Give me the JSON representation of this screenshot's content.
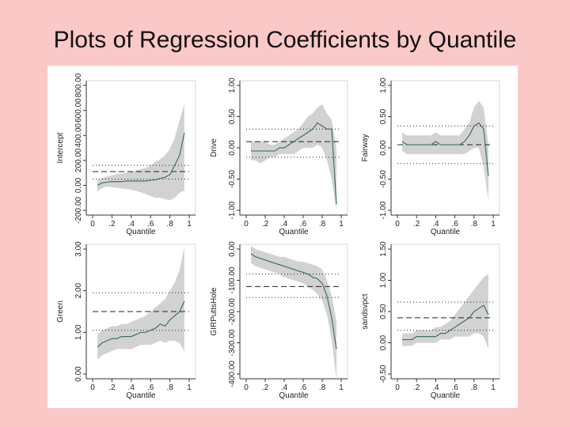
{
  "slide": {
    "title": "Plots of Regression Coefficients by Quantile"
  },
  "colors": {
    "background": "#fbc8c8",
    "band": "#d2d2d2",
    "line": "#3f7068",
    "ref": "#222222"
  },
  "chart_data": [
    {
      "type": "line",
      "ylabel": "Intercept",
      "xlabel": "Quantile",
      "ylim": [
        -200,
        800
      ],
      "yticks": [
        -200,
        0,
        200,
        400,
        600,
        800
      ],
      "ytick_labels": [
        "-200.00",
        "0.00",
        "200.00",
        "400.00",
        "600.00",
        "800.00"
      ],
      "xticks": [
        0,
        0.2,
        0.4,
        0.6,
        0.8,
        1
      ],
      "xtick_labels": [
        "0",
        ".2",
        ".4",
        ".6",
        ".8",
        "1"
      ],
      "x": [
        0.05,
        0.1,
        0.15,
        0.2,
        0.25,
        0.3,
        0.35,
        0.4,
        0.45,
        0.5,
        0.55,
        0.6,
        0.65,
        0.7,
        0.75,
        0.8,
        0.85,
        0.9,
        0.95
      ],
      "coef": [
        0,
        20,
        25,
        30,
        30,
        30,
        35,
        35,
        35,
        35,
        35,
        40,
        45,
        55,
        65,
        85,
        160,
        240,
        420
      ],
      "lower": [
        -50,
        -20,
        -10,
        -15,
        -20,
        -25,
        -30,
        -35,
        -45,
        -55,
        -70,
        -85,
        -100,
        -100,
        -110,
        -120,
        -100,
        -60,
        -40
      ],
      "upper": [
        40,
        60,
        70,
        80,
        90,
        95,
        100,
        110,
        120,
        130,
        140,
        160,
        190,
        210,
        240,
        290,
        380,
        520,
        650
      ],
      "ols": 110,
      "ci": [
        160,
        50
      ]
    },
    {
      "type": "line",
      "ylabel": "Drive",
      "xlabel": "Quantile",
      "ylim": [
        -1,
        1
      ],
      "yticks": [
        -1,
        -0.5,
        0,
        0.5,
        1
      ],
      "ytick_labels": [
        "-1.00",
        "-0.50",
        "0.00",
        "0.50",
        "1.00"
      ],
      "xticks": [
        0,
        0.2,
        0.4,
        0.6,
        0.8,
        1
      ],
      "xtick_labels": [
        "0",
        ".2",
        ".4",
        ".6",
        ".8",
        "1"
      ],
      "x": [
        0.05,
        0.1,
        0.15,
        0.2,
        0.25,
        0.3,
        0.35,
        0.4,
        0.45,
        0.5,
        0.55,
        0.6,
        0.65,
        0.7,
        0.75,
        0.8,
        0.85,
        0.9,
        0.95
      ],
      "coef": [
        -0.05,
        -0.05,
        -0.05,
        -0.05,
        -0.05,
        -0.05,
        0,
        0,
        0.05,
        0.1,
        0.15,
        0.2,
        0.25,
        0.3,
        0.4,
        0.35,
        0.3,
        0.3,
        -0.9
      ],
      "lower": [
        -0.2,
        -0.2,
        -0.25,
        -0.2,
        -0.15,
        -0.15,
        -0.1,
        -0.1,
        -0.1,
        -0.1,
        -0.05,
        0,
        0,
        0,
        0.05,
        0,
        -0.2,
        -0.5,
        -1.0
      ],
      "upper": [
        0.1,
        0.1,
        0.1,
        0.1,
        0.05,
        0.05,
        0.1,
        0.15,
        0.2,
        0.25,
        0.3,
        0.4,
        0.5,
        0.55,
        0.65,
        0.7,
        0.55,
        0.45,
        0
      ],
      "ols": 0.1,
      "ci": [
        0.3,
        -0.15
      ]
    },
    {
      "type": "line",
      "ylabel": "Fairway",
      "xlabel": "Quantile",
      "ylim": [
        -1,
        1
      ],
      "yticks": [
        -1,
        -0.5,
        0,
        0.5,
        1
      ],
      "ytick_labels": [
        "-1.00",
        "-0.50",
        "0.00",
        "0.50",
        "1.00"
      ],
      "xticks": [
        0,
        0.2,
        0.4,
        0.6,
        0.8,
        1
      ],
      "xtick_labels": [
        "0",
        ".2",
        ".4",
        ".6",
        ".8",
        "1"
      ],
      "x": [
        0.05,
        0.1,
        0.15,
        0.2,
        0.25,
        0.3,
        0.35,
        0.4,
        0.45,
        0.5,
        0.55,
        0.6,
        0.65,
        0.7,
        0.75,
        0.8,
        0.85,
        0.9,
        0.95
      ],
      "coef": [
        0.1,
        0.05,
        0.05,
        0.05,
        0.05,
        0.05,
        0.05,
        0.1,
        0.05,
        0.05,
        0.05,
        0.05,
        0.05,
        0.1,
        0.2,
        0.35,
        0.4,
        0.3,
        -0.45
      ],
      "lower": [
        -0.05,
        -0.1,
        -0.1,
        -0.1,
        -0.1,
        -0.1,
        -0.1,
        -0.1,
        -0.1,
        -0.1,
        -0.1,
        -0.1,
        -0.1,
        -0.1,
        -0.05,
        0,
        0,
        -0.3,
        -0.85
      ],
      "upper": [
        0.25,
        0.2,
        0.2,
        0.2,
        0.2,
        0.2,
        0.2,
        0.25,
        0.2,
        0.2,
        0.2,
        0.2,
        0.2,
        0.3,
        0.4,
        0.65,
        0.75,
        0.65,
        0.05
      ],
      "ols": 0.05,
      "ci": [
        0.35,
        -0.25
      ]
    },
    {
      "type": "line",
      "ylabel": "Green",
      "xlabel": "Quantile",
      "ylim": [
        0,
        3
      ],
      "yticks": [
        0,
        1,
        2,
        3
      ],
      "ytick_labels": [
        "0.00",
        "1.00",
        "2.00",
        "3.00"
      ],
      "xticks": [
        0,
        0.2,
        0.4,
        0.6,
        0.8,
        1
      ],
      "xtick_labels": [
        "0",
        ".2",
        ".4",
        ".6",
        ".8",
        "1"
      ],
      "x": [
        0.05,
        0.1,
        0.15,
        0.2,
        0.25,
        0.3,
        0.35,
        0.4,
        0.45,
        0.5,
        0.55,
        0.6,
        0.65,
        0.7,
        0.75,
        0.8,
        0.85,
        0.9,
        0.95
      ],
      "coef": [
        0.65,
        0.75,
        0.8,
        0.85,
        0.85,
        0.9,
        0.9,
        0.9,
        0.95,
        1.0,
        1.0,
        1.05,
        1.1,
        1.2,
        1.15,
        1.3,
        1.4,
        1.5,
        1.75
      ],
      "lower": [
        0.35,
        0.45,
        0.5,
        0.55,
        0.6,
        0.6,
        0.6,
        0.6,
        0.65,
        0.7,
        0.7,
        0.7,
        0.75,
        0.8,
        0.75,
        0.8,
        0.8,
        0.75,
        0.55
      ],
      "upper": [
        0.95,
        1.05,
        1.1,
        1.15,
        1.15,
        1.2,
        1.2,
        1.25,
        1.3,
        1.35,
        1.4,
        1.5,
        1.6,
        1.7,
        1.8,
        2.0,
        2.2,
        2.5,
        3.05
      ],
      "ols": 1.5,
      "ci": [
        1.95,
        1.05
      ]
    },
    {
      "type": "line",
      "ylabel": "GIRPuttsHole",
      "xlabel": "Quantile",
      "ylim": [
        -400,
        0
      ],
      "yticks": [
        -400,
        -300,
        -200,
        -100,
        0
      ],
      "ytick_labels": [
        "-400.00",
        "-300.00",
        "-200.00",
        "-100.00",
        "0.00"
      ],
      "xticks": [
        0,
        0.2,
        0.4,
        0.6,
        0.8,
        1
      ],
      "xtick_labels": [
        "0",
        ".2",
        ".4",
        ".6",
        ".8",
        "1"
      ],
      "x": [
        0.05,
        0.1,
        0.15,
        0.2,
        0.25,
        0.3,
        0.35,
        0.4,
        0.45,
        0.5,
        0.55,
        0.6,
        0.65,
        0.7,
        0.75,
        0.8,
        0.85,
        0.9,
        0.95
      ],
      "coef": [
        -15,
        -25,
        -30,
        -35,
        -40,
        -45,
        -50,
        -55,
        -60,
        -65,
        -70,
        -75,
        -80,
        -90,
        -95,
        -110,
        -150,
        -220,
        -320
      ],
      "lower": [
        -45,
        -55,
        -60,
        -65,
        -70,
        -75,
        -80,
        -90,
        -95,
        -100,
        -105,
        -110,
        -120,
        -130,
        -145,
        -165,
        -210,
        -290,
        -420
      ],
      "upper": [
        10,
        0,
        -5,
        -10,
        -15,
        -20,
        -25,
        -25,
        -30,
        -35,
        -40,
        -40,
        -45,
        -50,
        -55,
        -65,
        -100,
        -150,
        -230
      ],
      "ols": -120,
      "ci": [
        -80,
        -155
      ]
    },
    {
      "type": "line",
      "ylabel": "sandsvpct",
      "xlabel": "Quantile",
      "ylim": [
        -0.5,
        1.5
      ],
      "yticks": [
        -0.5,
        0,
        0.5,
        1,
        1.5
      ],
      "ytick_labels": [
        "-0.50",
        "0.00",
        "0.50",
        "1.00",
        "1.50"
      ],
      "xticks": [
        0,
        0.2,
        0.4,
        0.6,
        0.8,
        1
      ],
      "xtick_labels": [
        "0",
        ".2",
        ".4",
        ".6",
        ".8",
        "1"
      ],
      "x": [
        0.05,
        0.1,
        0.15,
        0.2,
        0.25,
        0.3,
        0.35,
        0.4,
        0.45,
        0.5,
        0.55,
        0.6,
        0.65,
        0.7,
        0.75,
        0.8,
        0.85,
        0.9,
        0.95
      ],
      "coef": [
        0.05,
        0.05,
        0.05,
        0.1,
        0.1,
        0.1,
        0.1,
        0.1,
        0.15,
        0.15,
        0.2,
        0.25,
        0.3,
        0.35,
        0.4,
        0.5,
        0.55,
        0.6,
        0.45
      ],
      "lower": [
        -0.05,
        -0.05,
        -0.05,
        0,
        0,
        0,
        0,
        0,
        0.05,
        0.05,
        0.05,
        0.1,
        0.1,
        0.1,
        0.1,
        0.15,
        0.15,
        0.1,
        -0.1
      ],
      "upper": [
        0.15,
        0.15,
        0.15,
        0.2,
        0.2,
        0.2,
        0.2,
        0.25,
        0.25,
        0.3,
        0.35,
        0.45,
        0.55,
        0.65,
        0.75,
        0.85,
        0.95,
        1.05,
        1.1
      ],
      "ols": 0.4,
      "ci": [
        0.65,
        0.2
      ]
    }
  ]
}
